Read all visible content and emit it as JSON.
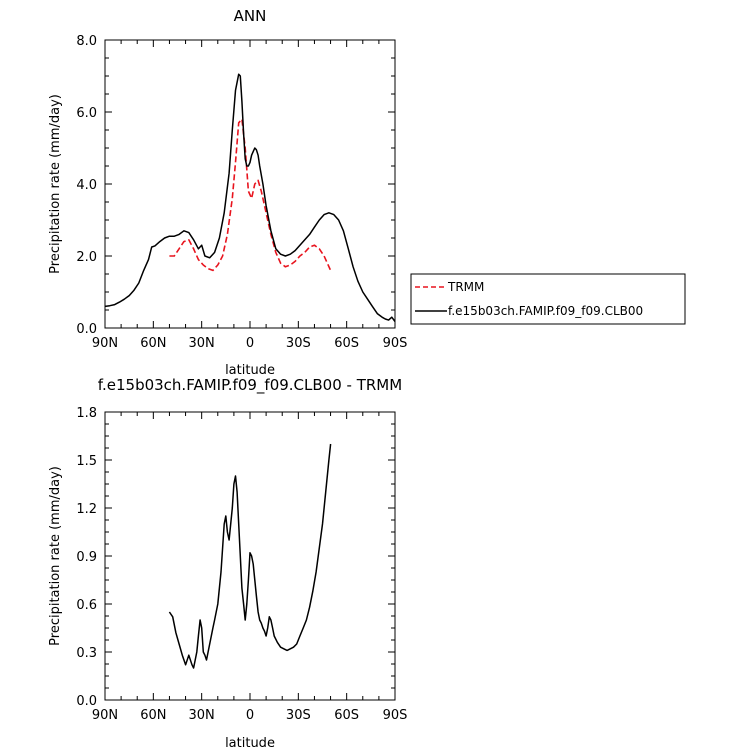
{
  "chart_data": [
    {
      "type": "line",
      "title": "ANN",
      "xlabel": "latitude",
      "ylabel": "Precipitation rate (mm/day)",
      "xlim": [
        -90,
        90
      ],
      "ylim": [
        0,
        8
      ],
      "x_ticks": [
        -90,
        -60,
        -30,
        0,
        30,
        60,
        90
      ],
      "x_tick_labels": [
        "90N",
        "60N",
        "30N",
        "0",
        "30S",
        "60S",
        "90S"
      ],
      "y_ticks": [
        0,
        2,
        4,
        6,
        8
      ],
      "y_tick_labels": [
        "0.0",
        "2.0",
        "4.0",
        "6.0",
        "8.0"
      ],
      "legend": {
        "placement": "right",
        "entries": [
          "TRMM",
          "f.e15b03ch.FAMIP.f09_f09.CLB00"
        ]
      },
      "series": [
        {
          "name": "TRMM",
          "color": "#e8141e",
          "dash": "dashed",
          "x": [
            -50,
            -47,
            -44,
            -41,
            -38,
            -35,
            -32,
            -29,
            -26,
            -23,
            -20,
            -17,
            -14,
            -11,
            -9,
            -7,
            -5,
            -3,
            -1,
            1,
            3,
            5,
            7,
            10,
            13,
            16,
            19,
            22,
            25,
            28,
            31,
            34,
            37,
            40,
            43,
            46,
            50
          ],
          "y": [
            2.0,
            2.0,
            2.2,
            2.4,
            2.45,
            2.2,
            1.9,
            1.75,
            1.65,
            1.6,
            1.75,
            2.0,
            2.6,
            3.6,
            4.6,
            5.7,
            5.8,
            5.0,
            3.8,
            3.6,
            4.0,
            4.1,
            3.8,
            3.2,
            2.6,
            2.1,
            1.8,
            1.7,
            1.75,
            1.85,
            2.0,
            2.1,
            2.25,
            2.3,
            2.2,
            2.0,
            1.6
          ]
        },
        {
          "name": "f.e15b03ch.FAMIP.f09_f09.CLB00",
          "color": "#000000",
          "dash": "solid",
          "x": [
            -90,
            -87,
            -84,
            -81,
            -78,
            -75,
            -72,
            -69,
            -66,
            -63,
            -61,
            -59,
            -56,
            -53,
            -50,
            -47,
            -44,
            -41,
            -38,
            -35,
            -32,
            -30,
            -28,
            -25,
            -22,
            -19,
            -16,
            -13,
            -11,
            -9,
            -7,
            -6,
            -5,
            -4,
            -3,
            -2,
            -1,
            0,
            1,
            2,
            3,
            4,
            5,
            6,
            8,
            10,
            13,
            16,
            19,
            22,
            25,
            28,
            31,
            34,
            37,
            40,
            43,
            46,
            49,
            52,
            55,
            58,
            61,
            64,
            67,
            70,
            73,
            76,
            79,
            82,
            84,
            86,
            88,
            90
          ],
          "y": [
            0.6,
            0.62,
            0.65,
            0.72,
            0.8,
            0.9,
            1.05,
            1.25,
            1.6,
            1.9,
            2.25,
            2.28,
            2.4,
            2.5,
            2.55,
            2.55,
            2.6,
            2.7,
            2.65,
            2.45,
            2.2,
            2.3,
            2.0,
            1.95,
            2.1,
            2.5,
            3.2,
            4.3,
            5.5,
            6.6,
            7.05,
            7.0,
            6.3,
            5.4,
            4.7,
            4.5,
            4.5,
            4.6,
            4.8,
            4.9,
            5.0,
            4.95,
            4.8,
            4.5,
            4.0,
            3.4,
            2.7,
            2.2,
            2.05,
            2.0,
            2.05,
            2.15,
            2.3,
            2.45,
            2.6,
            2.8,
            3.0,
            3.15,
            3.2,
            3.15,
            3.0,
            2.7,
            2.2,
            1.7,
            1.3,
            1.0,
            0.8,
            0.6,
            0.4,
            0.3,
            0.25,
            0.22,
            0.3,
            0.18
          ]
        }
      ]
    },
    {
      "type": "line",
      "title": "f.e15b03ch.FAMIP.f09_f09.CLB00 - TRMM",
      "xlabel": "latitude",
      "ylabel": "Precipitation rate (mm/day)",
      "xlim": [
        -90,
        90
      ],
      "ylim": [
        0,
        1.8
      ],
      "x_ticks": [
        -90,
        -60,
        -30,
        0,
        30,
        60,
        90
      ],
      "x_tick_labels": [
        "90N",
        "60N",
        "30N",
        "0",
        "30S",
        "60S",
        "90S"
      ],
      "y_ticks": [
        0,
        0.3,
        0.6,
        0.9,
        1.2,
        1.5,
        1.8
      ],
      "y_tick_labels": [
        "0.0",
        "0.3",
        "0.6",
        "0.9",
        "1.2",
        "1.5",
        "1.8"
      ],
      "series": [
        {
          "name": "",
          "color": "#000000",
          "dash": "solid",
          "x": [
            -50,
            -48,
            -46,
            -44,
            -42,
            -40,
            -38,
            -36,
            -35,
            -34,
            -33,
            -32,
            -31,
            -30,
            -29,
            -28,
            -27,
            -26,
            -25,
            -24,
            -23,
            -22,
            -21,
            -20,
            -19,
            -18,
            -17,
            -16,
            -15,
            -14,
            -13,
            -12,
            -11,
            -10,
            -9,
            -8,
            -7,
            -6,
            -5,
            -4,
            -3,
            -2,
            -1,
            0,
            1,
            2,
            3,
            4,
            5,
            6,
            7,
            8,
            9,
            10,
            11,
            12,
            13,
            14,
            15,
            17,
            19,
            21,
            23,
            25,
            27,
            29,
            31,
            33,
            35,
            37,
            39,
            41,
            43,
            45,
            47,
            49,
            50
          ],
          "y": [
            0.55,
            0.52,
            0.42,
            0.35,
            0.28,
            0.22,
            0.28,
            0.22,
            0.2,
            0.25,
            0.3,
            0.4,
            0.5,
            0.45,
            0.3,
            0.28,
            0.25,
            0.3,
            0.35,
            0.4,
            0.45,
            0.5,
            0.55,
            0.6,
            0.7,
            0.8,
            0.95,
            1.1,
            1.15,
            1.05,
            1.0,
            1.1,
            1.2,
            1.35,
            1.4,
            1.3,
            1.1,
            0.9,
            0.7,
            0.6,
            0.5,
            0.6,
            0.75,
            0.92,
            0.9,
            0.85,
            0.75,
            0.65,
            0.55,
            0.5,
            0.48,
            0.45,
            0.43,
            0.4,
            0.45,
            0.52,
            0.5,
            0.45,
            0.4,
            0.36,
            0.33,
            0.32,
            0.31,
            0.32,
            0.33,
            0.35,
            0.4,
            0.45,
            0.5,
            0.58,
            0.68,
            0.8,
            0.95,
            1.1,
            1.3,
            1.5,
            1.6
          ]
        }
      ]
    }
  ]
}
